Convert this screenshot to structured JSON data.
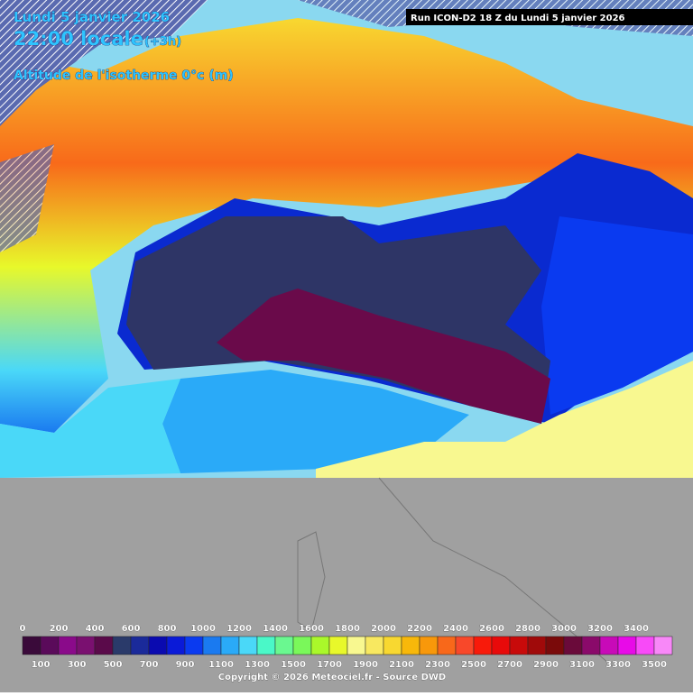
{
  "header": {
    "date": "Lundi 5 janvier 2026",
    "time": "22:00 locale",
    "offset": "(+3h)",
    "title": "Altitude de l'isotherme 0°c (m)"
  },
  "run": "Run ICON-D2 18 Z du Lundi 5 janvier 2026",
  "legend": {
    "labels": [
      0,
      100,
      200,
      300,
      400,
      500,
      600,
      700,
      800,
      900,
      1000,
      1100,
      1200,
      1300,
      1400,
      1500,
      1600,
      1700,
      1800,
      1900,
      2000,
      2100,
      2200,
      2300,
      2400,
      2500,
      2600,
      2700,
      2800,
      2900,
      3000,
      3100,
      3200,
      3300,
      3400,
      3500
    ],
    "colors": [
      "#3a0a3a",
      "#5a0a5a",
      "#8a0a8a",
      "#7a1070",
      "#5a0a4a",
      "#2a3a6a",
      "#1a2a9a",
      "#0a0ab0",
      "#0a1ad8",
      "#0a3af0",
      "#1a7af0",
      "#2aaaf8",
      "#4ad8f8",
      "#4af8c8",
      "#6af890",
      "#7af85a",
      "#aaf82a",
      "#e8f82a",
      "#f8f890",
      "#f8e860",
      "#f8d830",
      "#f8b80a",
      "#f8980a",
      "#f8681a",
      "#f8482a",
      "#f81a0a",
      "#e80a0a",
      "#c80a0a",
      "#a00a0a",
      "#7a0a0a",
      "#6a0a3a",
      "#8a0a6a",
      "#c80ab8",
      "#e80ae8",
      "#f84af8",
      "#f888f8"
    ]
  },
  "copyright": "Copyright © 2026 Meteociel.fr - Source DWD"
}
